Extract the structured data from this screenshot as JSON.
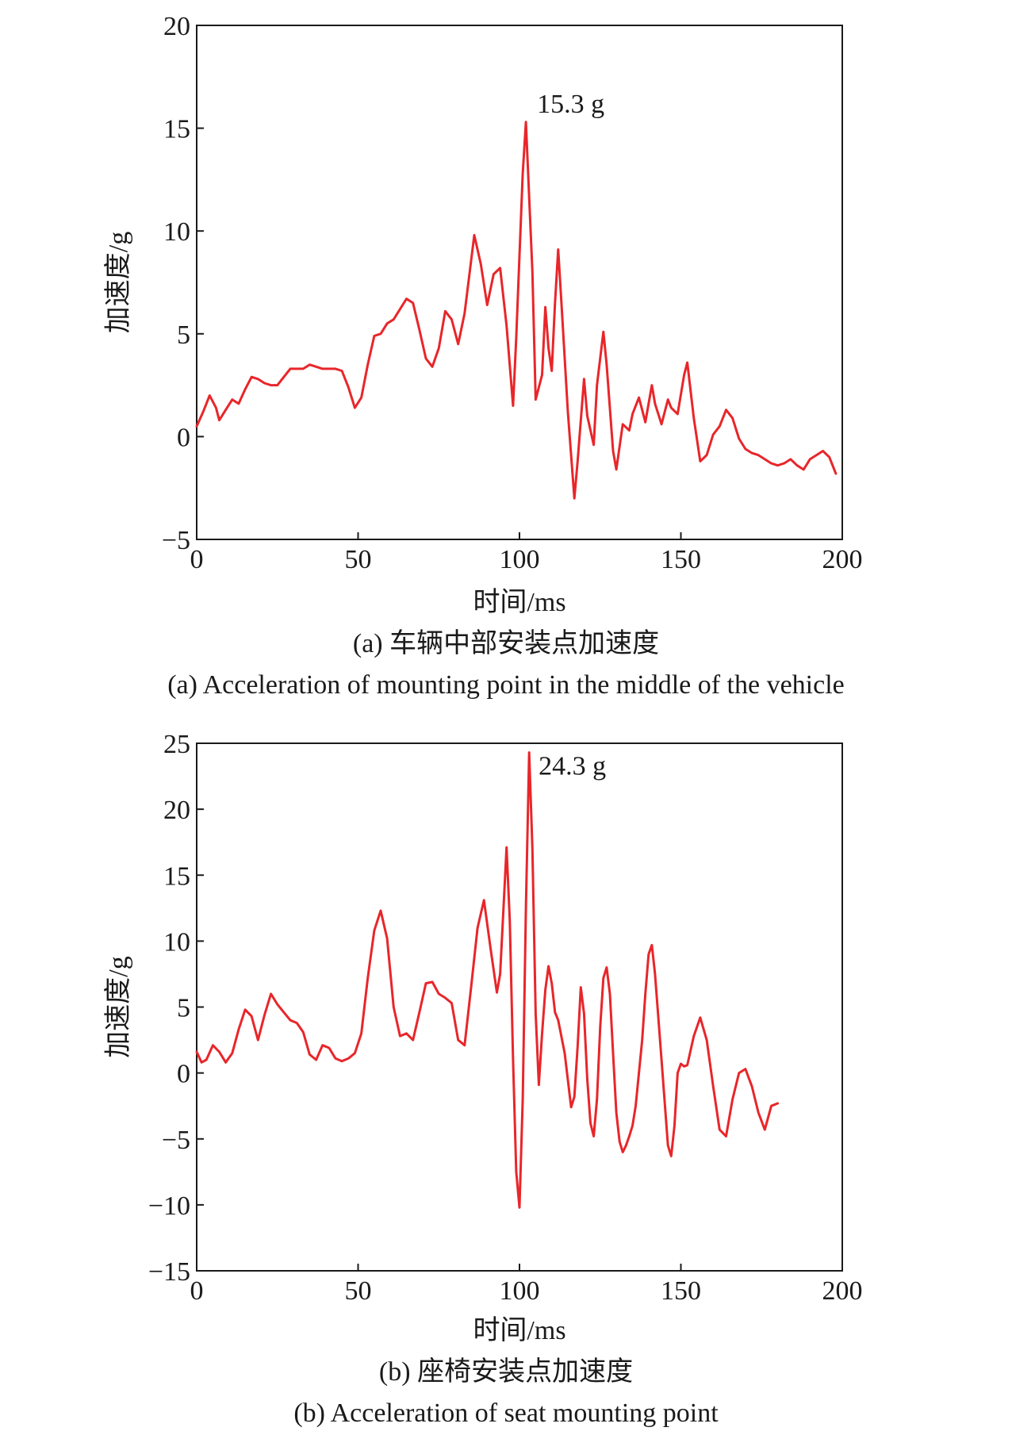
{
  "chart_data": [
    {
      "type": "line",
      "xlabel": "时间/ms",
      "ylabel": "加速度/g",
      "xlim": [
        0,
        200
      ],
      "ylim": [
        -5,
        20
      ],
      "xticks": [
        "0",
        "50",
        "100",
        "150",
        "200"
      ],
      "yticks": [
        "−5",
        "0",
        "5",
        "10",
        "15",
        "20"
      ],
      "caption_zh": "(a) 车辆中部安装点加速度",
      "caption_en": "(a) Acceleration of mounting point in the middle of the vehicle",
      "annotation": "15.3 g",
      "annotation_point": [
        102,
        15.3
      ],
      "color": "#e8262a",
      "series": [
        {
          "x": [
            0,
            2,
            4,
            6,
            7,
            9,
            11,
            13,
            15,
            17,
            19,
            21,
            23,
            25,
            27,
            29,
            31,
            33,
            35,
            37,
            39,
            41,
            43,
            45,
            47,
            49,
            51,
            53,
            55,
            57,
            59,
            61,
            63,
            65,
            67,
            69,
            71,
            73,
            75,
            77,
            79,
            81,
            83,
            86,
            88,
            90,
            92,
            94,
            96,
            98,
            99,
            101,
            102,
            104,
            105,
            107,
            108,
            109,
            110,
            111,
            112,
            113,
            115,
            117,
            118,
            120,
            121,
            123,
            124,
            126,
            127,
            129,
            130,
            132,
            134,
            135,
            137,
            138,
            139,
            141,
            142,
            144,
            146,
            147,
            149,
            151,
            152,
            154,
            156,
            158,
            160,
            162,
            164,
            166,
            168,
            170,
            172,
            174,
            176,
            178,
            180,
            182,
            184,
            186,
            188,
            190,
            192,
            194,
            196,
            198
          ],
          "y": [
            0.5,
            1.2,
            2.0,
            1.4,
            0.8,
            1.3,
            1.8,
            1.6,
            2.3,
            2.9,
            2.8,
            2.6,
            2.5,
            2.5,
            2.9,
            3.3,
            3.3,
            3.3,
            3.5,
            3.4,
            3.3,
            3.3,
            3.3,
            3.2,
            2.4,
            1.4,
            1.9,
            3.5,
            4.9,
            5.0,
            5.5,
            5.7,
            6.2,
            6.7,
            6.5,
            5.2,
            3.8,
            3.4,
            4.3,
            6.1,
            5.7,
            4.5,
            6.0,
            9.8,
            8.4,
            6.4,
            7.9,
            8.2,
            5.4,
            1.5,
            4.8,
            12.8,
            15.3,
            8.0,
            1.8,
            3.0,
            6.3,
            4.3,
            3.2,
            6.5,
            9.1,
            6.5,
            1.2,
            -3.0,
            -1.2,
            2.8,
            1.0,
            -0.4,
            2.5,
            5.1,
            3.5,
            -0.7,
            -1.6,
            0.6,
            0.3,
            1.1,
            1.9,
            1.3,
            0.7,
            2.5,
            1.6,
            0.6,
            1.8,
            1.4,
            1.1,
            3.0,
            3.6,
            0.9,
            -1.2,
            -0.9,
            0.1,
            0.5,
            1.3,
            0.9,
            -0.1,
            -0.6,
            -0.8,
            -0.9,
            -1.1,
            -1.3,
            -1.4,
            -1.3,
            -1.1,
            -1.4,
            -1.6,
            -1.1,
            -0.9,
            -0.7,
            -1.0,
            -1.8
          ]
        }
      ]
    },
    {
      "type": "line",
      "xlabel": "时间/ms",
      "ylabel": "加速度/g",
      "xlim": [
        0,
        200
      ],
      "ylim": [
        -15,
        25
      ],
      "xticks": [
        "0",
        "50",
        "100",
        "150",
        "200"
      ],
      "yticks": [
        "−15",
        "−10",
        "−5",
        "0",
        "5",
        "10",
        "15",
        "20",
        "25"
      ],
      "caption_zh": "(b) 座椅安装点加速度",
      "caption_en": "(b) Acceleration of seat mounting point",
      "annotation": "24.3 g",
      "annotation_point": [
        102,
        24.3
      ],
      "color": "#e8262a",
      "series": [
        {
          "x": [
            0,
            1.5,
            3,
            5,
            7,
            9,
            11,
            13,
            15,
            17,
            19,
            21,
            23,
            25,
            27,
            29,
            31,
            33,
            35,
            37,
            39,
            41,
            43,
            45,
            47,
            49,
            51,
            53,
            55,
            57,
            59,
            61,
            63,
            65,
            67,
            69,
            71,
            73,
            75,
            77,
            79,
            81,
            83,
            85,
            87,
            89,
            91,
            93,
            94,
            95,
            96,
            97,
            98,
            99,
            100,
            101,
            102,
            103,
            104,
            105,
            106,
            107,
            108,
            109,
            110,
            111,
            112,
            114,
            116,
            117,
            118,
            119,
            120,
            121,
            122,
            123,
            124,
            125,
            126,
            127,
            128,
            129,
            130,
            131,
            132,
            133,
            134,
            135,
            136,
            138,
            139,
            140,
            141,
            142,
            144,
            146,
            147,
            148,
            149,
            150,
            151,
            152,
            154,
            156,
            158,
            160,
            162,
            164,
            166,
            168,
            170,
            172,
            174,
            176,
            178,
            180
          ],
          "y": [
            1.6,
            0.8,
            1.0,
            2.1,
            1.6,
            0.8,
            1.5,
            3.3,
            4.8,
            4.3,
            2.5,
            4.4,
            6.0,
            5.2,
            4.6,
            4.0,
            3.8,
            3.1,
            1.4,
            1.0,
            2.1,
            1.9,
            1.1,
            0.9,
            1.1,
            1.5,
            3.0,
            7.2,
            10.8,
            12.3,
            10.2,
            5.0,
            2.8,
            3.0,
            2.5,
            4.6,
            6.8,
            6.9,
            6.0,
            5.7,
            5.3,
            2.5,
            2.1,
            6.5,
            11.0,
            13.1,
            9.5,
            6.1,
            7.5,
            12.2,
            17.1,
            11.5,
            1.0,
            -7.5,
            -10.2,
            -2.0,
            12.5,
            24.3,
            17.0,
            4.5,
            -0.9,
            3.0,
            6.3,
            8.1,
            6.8,
            4.6,
            4.0,
            1.5,
            -2.6,
            -1.8,
            2.0,
            6.5,
            4.5,
            -0.5,
            -3.8,
            -4.8,
            -2.0,
            3.5,
            7.2,
            8.0,
            6.0,
            1.5,
            -3.0,
            -5.2,
            -6.0,
            -5.5,
            -4.8,
            -4.0,
            -2.5,
            2.5,
            6.0,
            9.0,
            9.7,
            7.5,
            1.0,
            -5.5,
            -6.3,
            -4.0,
            0.0,
            0.7,
            0.5,
            0.6,
            2.8,
            4.2,
            2.5,
            -1.0,
            -4.3,
            -4.8,
            -2.0,
            0.0,
            0.3,
            -1.0,
            -3.0,
            -4.3,
            -2.5,
            -2.3
          ]
        }
      ]
    }
  ]
}
